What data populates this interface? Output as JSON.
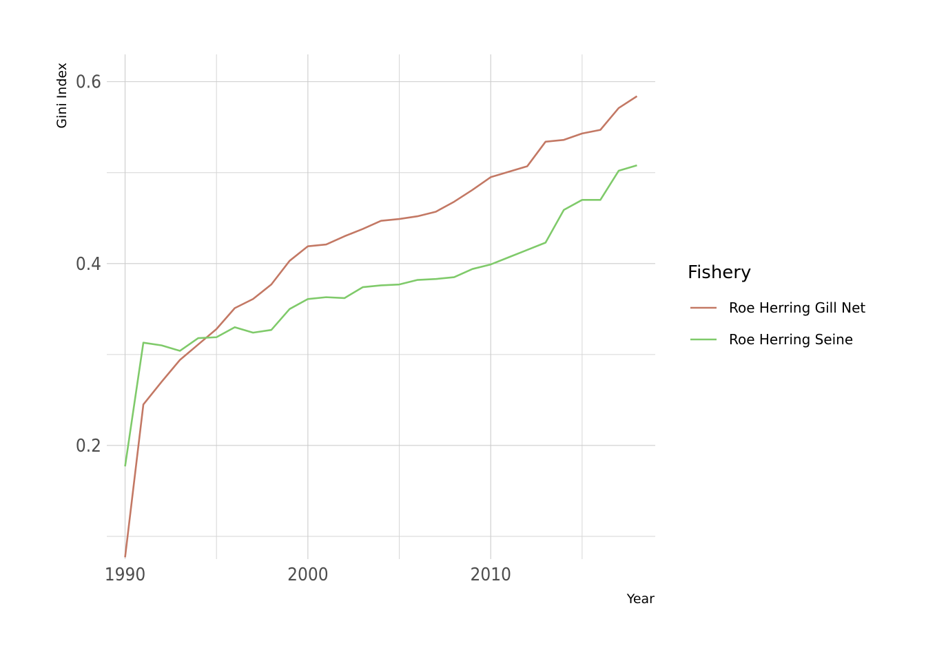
{
  "colors": {
    "gill_net": "#C37864",
    "seine": "#7FCA6A",
    "grid": "#cccccc",
    "background": "#ffffff"
  },
  "chart_data": {
    "type": "line",
    "title": "",
    "xlabel": "Year",
    "ylabel": "Gini Index",
    "xlim": [
      1989,
      2019
    ],
    "ylim": [
      0.075,
      0.63
    ],
    "x_ticks": [
      1990,
      2000,
      2010
    ],
    "x_tick_labels": [
      "1990",
      "2000",
      "2010"
    ],
    "x_minor_ticks": [
      1995,
      2005,
      2015
    ],
    "y_ticks": [
      0.2,
      0.4,
      0.6
    ],
    "y_tick_labels": [
      "0.2",
      "0.4",
      "0.6"
    ],
    "y_minor_ticks": [
      0.1,
      0.3,
      0.5
    ],
    "grid": true,
    "legend": {
      "title": "Fishery",
      "placement": "right"
    },
    "x": [
      1990,
      1991,
      1992,
      1993,
      1994,
      1995,
      1996,
      1997,
      1998,
      1999,
      2000,
      2001,
      2002,
      2003,
      2004,
      2005,
      2006,
      2007,
      2008,
      2009,
      2010,
      2011,
      2012,
      2013,
      2014,
      2015,
      2016,
      2017,
      2018
    ],
    "series": [
      {
        "name": "Roe Herring Gill Net",
        "color": "#C37864",
        "values": [
          0.077,
          0.245,
          0.27,
          0.294,
          0.311,
          0.328,
          0.351,
          0.361,
          0.377,
          0.403,
          0.419,
          0.421,
          0.43,
          0.438,
          0.447,
          0.449,
          0.452,
          0.457,
          0.468,
          0.481,
          0.495,
          0.501,
          0.507,
          0.534,
          0.536,
          0.543,
          0.547,
          0.571,
          0.584
        ]
      },
      {
        "name": "Roe Herring Seine",
        "color": "#7FCA6A",
        "values": [
          0.177,
          0.313,
          0.31,
          0.304,
          0.318,
          0.319,
          0.33,
          0.324,
          0.327,
          0.35,
          0.361,
          0.363,
          0.362,
          0.374,
          0.376,
          0.377,
          0.382,
          0.383,
          0.385,
          0.394,
          0.399,
          0.407,
          0.415,
          0.423,
          0.459,
          0.47,
          0.47,
          0.502,
          0.508
        ]
      }
    ]
  }
}
